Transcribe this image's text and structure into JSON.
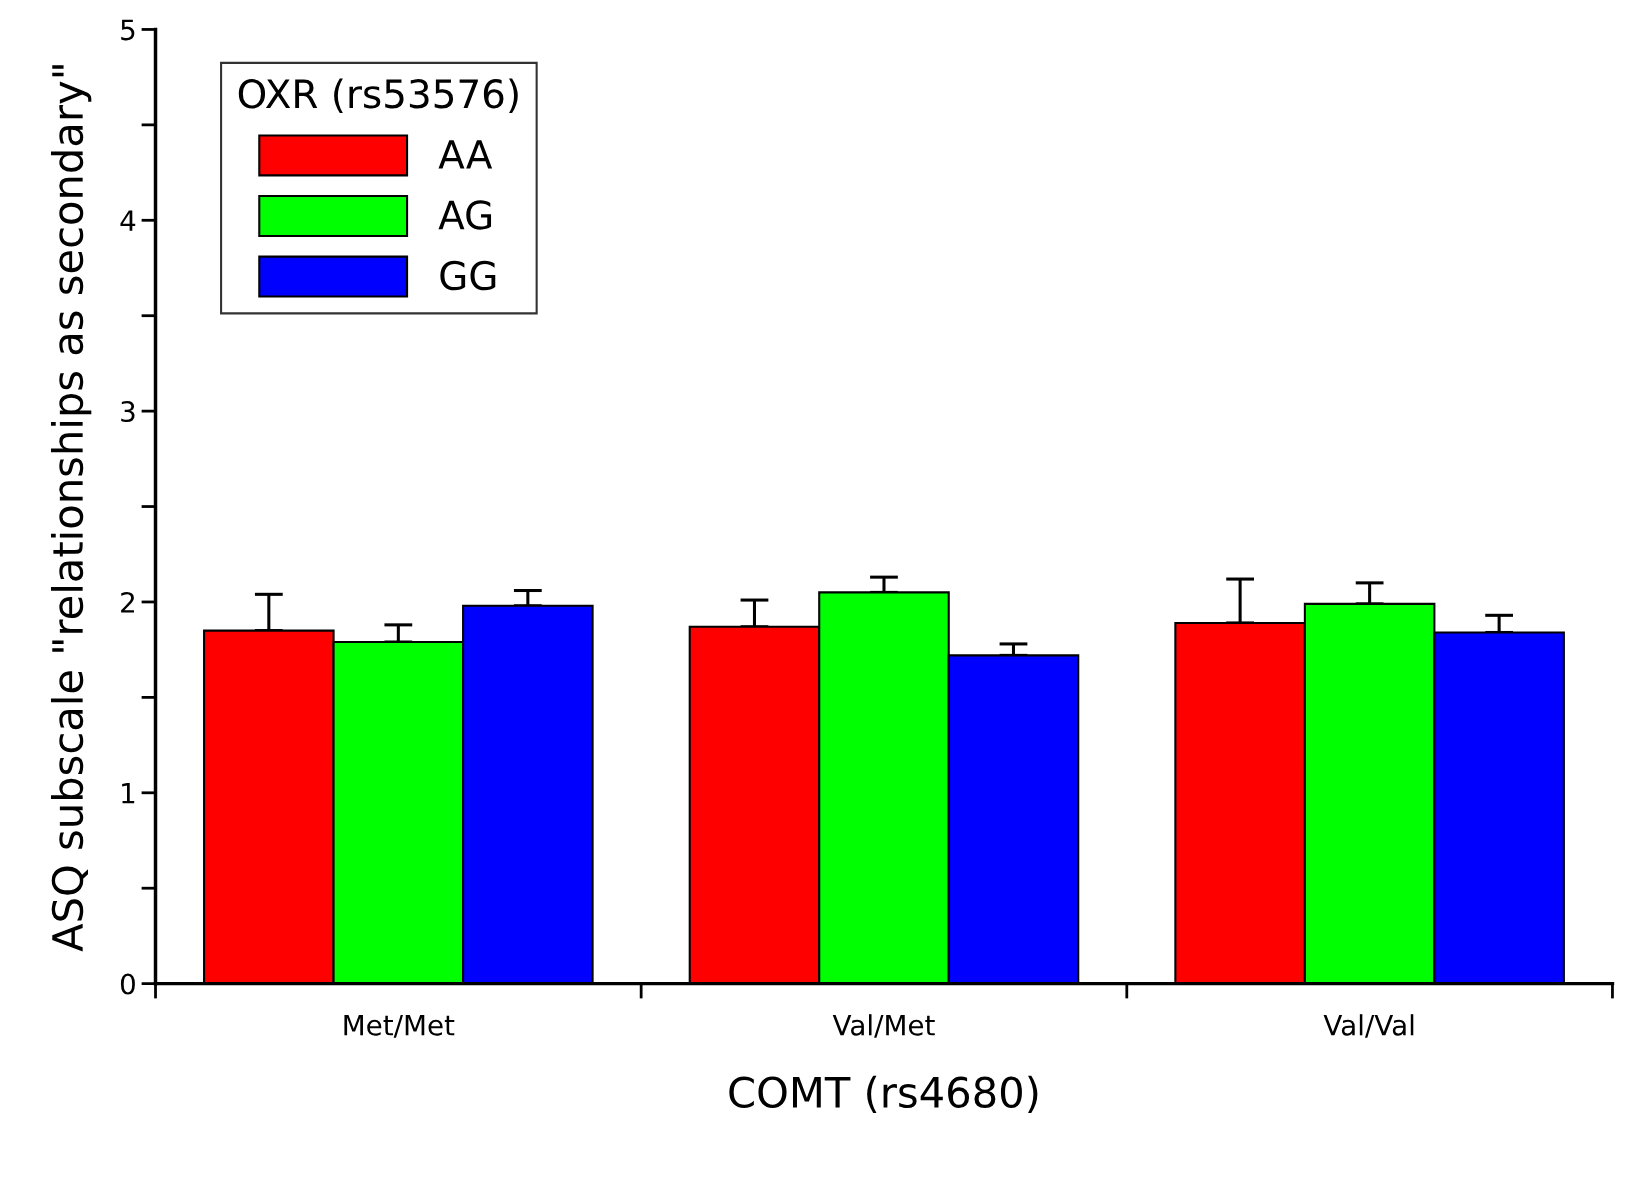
{
  "chart_data": {
    "type": "bar",
    "xlabel": "COMT (rs4680)",
    "ylabel": "ASQ subscale \"relationships as secondary\"",
    "legend_title": "OXR (rs53576)",
    "categories": [
      "Met/Met",
      "Val/Met",
      "Val/Val"
    ],
    "series": [
      {
        "name": "AA",
        "color": "#ff0000",
        "values": [
          1.85,
          1.87,
          1.89
        ],
        "errors": [
          [
            1.85,
            2.04
          ],
          [
            1.87,
            2.01
          ],
          [
            1.89,
            2.12
          ]
        ]
      },
      {
        "name": "AG",
        "color": "#00ff00",
        "values": [
          1.79,
          2.05,
          1.99
        ],
        "errors": [
          [
            1.79,
            1.88
          ],
          [
            2.05,
            2.13
          ],
          [
            1.99,
            2.1
          ]
        ]
      },
      {
        "name": "GG",
        "color": "#0000ff",
        "values": [
          1.98,
          1.72,
          1.84
        ],
        "errors": [
          [
            1.98,
            2.06
          ],
          [
            1.72,
            1.78
          ],
          [
            1.84,
            1.93
          ]
        ]
      }
    ],
    "ylim": [
      0,
      5
    ],
    "yticks": [
      0,
      {
        "value": 0.5,
        "label": null
      },
      1,
      {
        "value": 1.5,
        "label": null
      },
      2,
      {
        "value": 2.5,
        "label": null
      },
      3,
      {
        "value": 3.5,
        "label": null
      },
      4,
      {
        "value": 4.5,
        "label": null
      },
      5
    ],
    "grid": false,
    "legend": "top left"
  }
}
